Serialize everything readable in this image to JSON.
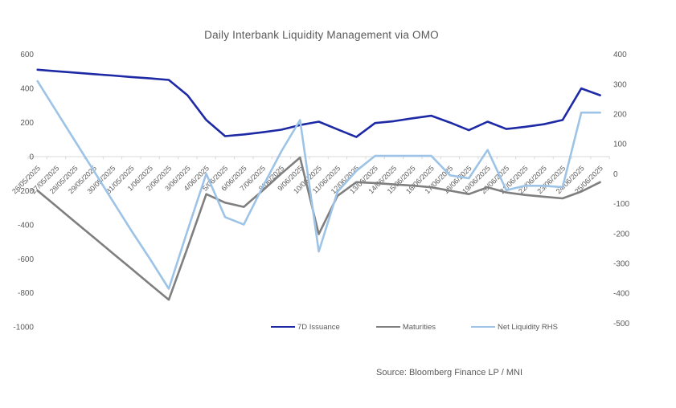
{
  "title": "Daily Interbank Liquidity Management via OMO",
  "source": "Source: Bloomberg Finance LP / MNI",
  "colors": {
    "navy": "#1E2AA5",
    "gray": "#7F7F7F",
    "light_blue": "#9DC3E6",
    "axis_line": "#D9D9D9",
    "axis_text": "#595959",
    "title_text": "#595959"
  },
  "legend": {
    "items": [
      {
        "label": "7D Issuance",
        "color": "#1E2AA5",
        "gap_after": 45
      },
      {
        "label": "Maturities",
        "color": "#7F7F7F",
        "gap_after": 44
      },
      {
        "label": "Net Liquidity RHS",
        "color": "#9DC3E6",
        "gap_after": 0
      }
    ]
  },
  "chart_data": {
    "type": "line",
    "title": "Daily Interbank Liquidity Management via OMO",
    "categories": [
      "26/05/2025",
      "27/05/2025",
      "28/05/2025",
      "29/05/2025",
      "30/05/2025",
      "31/05/2025",
      "1/06/2025",
      "2/06/2025",
      "3/06/2025",
      "4/06/2025",
      "5/06/2025",
      "6/06/2025",
      "7/06/2025",
      "8/06/2025",
      "9/06/2025",
      "10/06/2025",
      "11/06/2025",
      "12/06/2025",
      "13/06/2025",
      "14/06/2025",
      "15/06/2025",
      "16/06/2025",
      "17/06/2025",
      "18/06/2025",
      "19/06/2025",
      "20/06/2025",
      "21/06/2025",
      "22/06/2025",
      "23/06/2025",
      "24/06/2025",
      "25/06/2025"
    ],
    "series": [
      {
        "name": "7D Issuance",
        "axis": "left",
        "color": "#1E2AA5",
        "values": [
          510,
          501,
          493,
          484,
          476,
          467,
          459,
          450,
          360,
          215,
          120,
          130,
          143,
          158,
          185,
          205,
          160,
          115,
          197,
          208,
          225,
          240,
          200,
          155,
          205,
          162,
          175,
          190,
          215,
          400,
          360
        ]
      },
      {
        "name": "Maturities",
        "axis": "left",
        "color": "#7F7F7F",
        "values": [
          -200,
          -291,
          -383,
          -474,
          -566,
          -657,
          -749,
          -840,
          -535,
          -220,
          -270,
          -295,
          -200,
          -100,
          -5,
          -455,
          -230,
          -150,
          -155,
          -163,
          -170,
          -180,
          -200,
          -220,
          -180,
          -210,
          -225,
          -235,
          -245,
          -205,
          -150
        ]
      },
      {
        "name": "Net Liquidity RHS",
        "axis": "right",
        "color": "#9DC3E6",
        "values": [
          310,
          210,
          110,
          10,
          -90,
          -190,
          -285,
          -385,
          -190,
          0,
          -145,
          -170,
          -45,
          75,
          180,
          -260,
          -60,
          10,
          60,
          60,
          60,
          60,
          -5,
          -15,
          80,
          -55,
          -40,
          -40,
          -45,
          205,
          205
        ]
      }
    ],
    "left_axis": {
      "min": -1000,
      "max": 600,
      "step": 200,
      "labels": [
        "600",
        "400",
        "200",
        "0",
        "-200",
        "-400",
        "-600",
        "-800",
        "-1000"
      ]
    },
    "right_axis": {
      "min": -500,
      "max": 400,
      "step": 100,
      "labels": [
        "400",
        "300",
        "200",
        "100",
        "0",
        "-100",
        "-200",
        "-300",
        "-400",
        "-500"
      ]
    },
    "legend_position": "bottom",
    "gridlines": "zero-line-only",
    "x_label_rotation_deg": 45
  }
}
